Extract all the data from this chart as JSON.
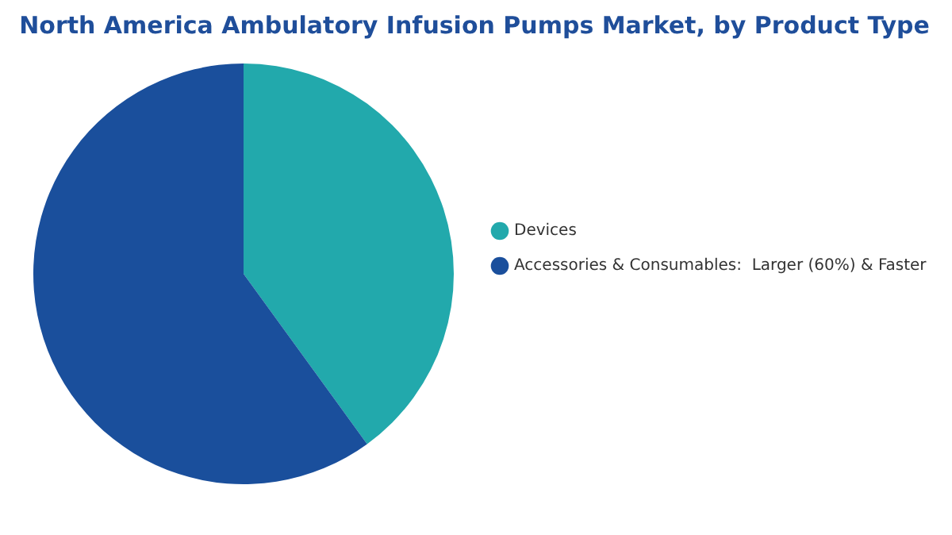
{
  "chart_data": {
    "type": "pie",
    "title": "North America Ambulatory Infusion Pumps Market, by Product Type",
    "categories": [
      "Devices",
      "Accessories & Consumables:  Larger (60%) & Faster"
    ],
    "values": [
      40,
      60
    ],
    "colors": [
      "#22a9ac",
      "#1a4f9c"
    ],
    "legend": "right"
  }
}
